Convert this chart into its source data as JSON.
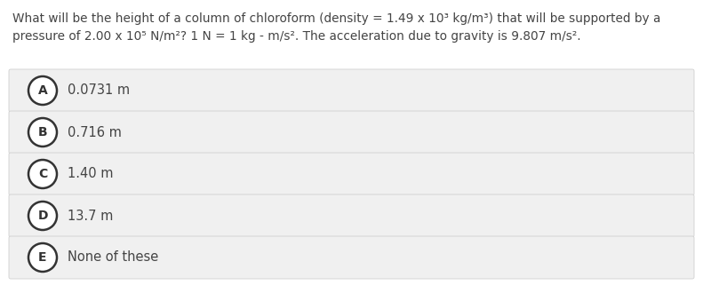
{
  "question_line1": "What will be the height of a column of chloroform (density = 1.49 x 10³ kg/m³) that will be supported by a",
  "question_line2": "pressure of 2.00 x 10⁵ N/m²? 1 N = 1 kg - m/s². The acceleration due to gravity is 9.807 m/s².",
  "options": [
    {
      "letter": "A",
      "text": "0.0731 m"
    },
    {
      "letter": "B",
      "text": "0.716 m"
    },
    {
      "letter": "C",
      "text": "1.40 m"
    },
    {
      "letter": "D",
      "text": "13.7 m"
    },
    {
      "letter": "E",
      "text": "None of these"
    }
  ],
  "bg_color": "#ffffff",
  "option_bg_color": "#f0f0f0",
  "option_border_color": "#d0d0d0",
  "text_color": "#444444",
  "circle_edge_color": "#333333",
  "question_fontsize": 9.8,
  "option_fontsize": 10.5,
  "letter_fontsize": 10.0,
  "fig_width": 7.91,
  "fig_height": 3.3,
  "dpi": 100
}
